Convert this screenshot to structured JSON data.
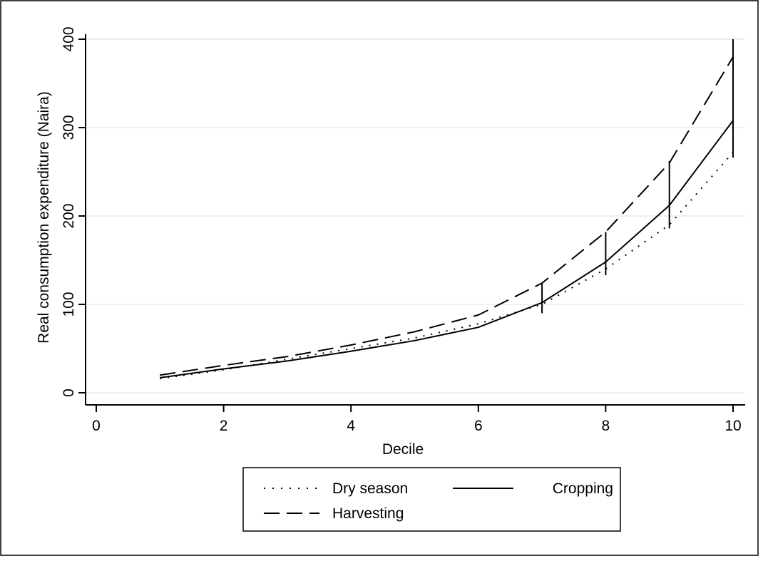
{
  "chart_data": {
    "type": "line",
    "xlabel": "Decile",
    "ylabel": "Real consumption expenditure (Naira)",
    "xlim": [
      0,
      10
    ],
    "ylim": [
      0,
      400
    ],
    "x_ticks": [
      0,
      2,
      4,
      6,
      8,
      10
    ],
    "y_ticks": [
      0,
      100,
      200,
      300,
      400
    ],
    "grid": "horizontal",
    "legend_position": "bottom",
    "x": [
      1,
      2,
      3,
      4,
      5,
      6,
      7,
      8,
      9,
      10
    ],
    "series": [
      {
        "name": "Dry season",
        "style": "dotted",
        "values": [
          16,
          26,
          38,
          50,
          62,
          78,
          100,
          140,
          190,
          272
        ]
      },
      {
        "name": "Cropping",
        "style": "solid",
        "values": [
          17,
          27,
          36,
          47,
          59,
          74,
          102,
          148,
          212,
          308
        ]
      },
      {
        "name": "Harvesting",
        "style": "dashed",
        "values": [
          20,
          31,
          41,
          54,
          69,
          88,
          124,
          182,
          260,
          380
        ]
      }
    ],
    "error_bars": [
      {
        "x": 7,
        "low": 90,
        "high": 124
      },
      {
        "x": 8,
        "low": 133,
        "high": 182
      },
      {
        "x": 9,
        "low": 186,
        "high": 262
      },
      {
        "x": 10,
        "low": 266,
        "high": 400
      }
    ]
  },
  "colors": {
    "line": "#000000",
    "grid": "#e6ece9",
    "background": "#ffffff"
  }
}
